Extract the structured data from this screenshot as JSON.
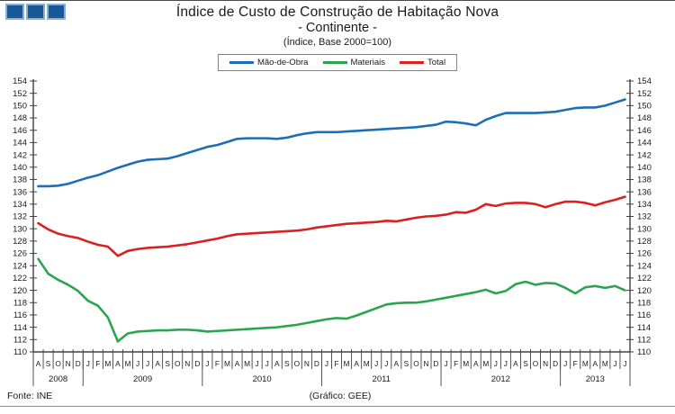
{
  "header": {
    "title": "Índice de Custo de Construção de Habitação Nova",
    "subtitle": "- Continente -",
    "caption": "(Índice, Base 2000=100)"
  },
  "legend": [
    {
      "label": "Mão-de-Obra",
      "color": "#1C6FB7"
    },
    {
      "label": "Materiais",
      "color": "#2BA44E"
    },
    {
      "label": "Total",
      "color": "#D92121"
    }
  ],
  "footer": {
    "source": "Fonte: INE",
    "credit": "(Gráfico: GEE)"
  },
  "colors": {
    "axis": "#404040",
    "text": "#1a1a1a",
    "logo_square_fill": "#1A5796",
    "logo_square_border": "#8AAFD0"
  },
  "chart_data": {
    "type": "line",
    "title": "Índice de Custo de Construção de Habitação Nova - Continente - (Índice, Base 2000=100)",
    "ylim": [
      110,
      154
    ],
    "ytick_step": 2,
    "grid": false,
    "legend_position": "top-center",
    "x_months": [
      "A",
      "S",
      "O",
      "N",
      "D",
      "J",
      "F",
      "M",
      "A",
      "M",
      "J",
      "J",
      "A",
      "S",
      "O",
      "N",
      "D",
      "J",
      "F",
      "M",
      "A",
      "M",
      "J",
      "J",
      "A",
      "S",
      "O",
      "N",
      "D",
      "J",
      "F",
      "M",
      "A",
      "M",
      "J",
      "J",
      "A",
      "S",
      "O",
      "N",
      "D",
      "J",
      "F",
      "M",
      "A",
      "M",
      "J",
      "J",
      "A",
      "S",
      "O",
      "N",
      "D",
      "J",
      "F",
      "M",
      "A",
      "M",
      "J",
      "J"
    ],
    "x_years": [
      {
        "label": "2008",
        "count": 5
      },
      {
        "label": "2009",
        "count": 12
      },
      {
        "label": "2010",
        "count": 12
      },
      {
        "label": "2011",
        "count": 12
      },
      {
        "label": "2012",
        "count": 12
      },
      {
        "label": "2013",
        "count": 7
      }
    ],
    "series": [
      {
        "name": "Mão-de-Obra",
        "color": "#1C6FB7",
        "values": [
          136.9,
          136.9,
          137.0,
          137.3,
          137.8,
          138.3,
          138.7,
          139.3,
          139.9,
          140.4,
          140.9,
          141.2,
          141.3,
          141.4,
          141.8,
          142.3,
          142.8,
          143.3,
          143.6,
          144.1,
          144.6,
          144.7,
          144.7,
          144.7,
          144.6,
          144.8,
          145.2,
          145.5,
          145.7,
          145.7,
          145.7,
          145.8,
          145.9,
          146.0,
          146.1,
          146.2,
          146.3,
          146.4,
          146.5,
          146.7,
          146.9,
          147.4,
          147.3,
          147.1,
          146.8,
          147.7,
          148.3,
          148.8,
          148.8,
          148.8,
          148.8,
          148.9,
          149.0,
          149.3,
          149.6,
          149.7,
          149.7,
          150.0,
          150.5,
          151.0
        ]
      },
      {
        "name": "Materiais",
        "color": "#2BA44E",
        "values": [
          125.1,
          122.7,
          121.7,
          120.9,
          119.9,
          118.3,
          117.5,
          115.6,
          111.7,
          113.0,
          113.3,
          113.4,
          113.5,
          113.5,
          113.6,
          113.6,
          113.5,
          113.3,
          113.4,
          113.5,
          113.6,
          113.7,
          113.8,
          113.9,
          114.0,
          114.2,
          114.4,
          114.7,
          115.0,
          115.3,
          115.5,
          115.4,
          115.9,
          116.5,
          117.1,
          117.7,
          117.9,
          118.0,
          118.0,
          118.2,
          118.5,
          118.8,
          119.1,
          119.4,
          119.7,
          120.1,
          119.5,
          119.9,
          121.0,
          121.4,
          120.9,
          121.2,
          121.1,
          120.4,
          119.5,
          120.5,
          120.7,
          120.4,
          120.7,
          120.0
        ]
      },
      {
        "name": "Total",
        "color": "#D92121",
        "values": [
          130.9,
          129.9,
          129.2,
          128.8,
          128.5,
          127.9,
          127.4,
          127.1,
          125.6,
          126.4,
          126.7,
          126.9,
          127.0,
          127.1,
          127.3,
          127.5,
          127.8,
          128.1,
          128.4,
          128.8,
          129.1,
          129.2,
          129.3,
          129.4,
          129.5,
          129.6,
          129.7,
          129.9,
          130.2,
          130.4,
          130.6,
          130.8,
          130.9,
          131.0,
          131.1,
          131.3,
          131.2,
          131.5,
          131.8,
          132.0,
          132.1,
          132.3,
          132.7,
          132.6,
          133.1,
          134.0,
          133.7,
          134.1,
          134.2,
          134.2,
          134.0,
          133.5,
          134.0,
          134.4,
          134.4,
          134.2,
          133.8,
          134.3,
          134.7,
          135.2
        ]
      }
    ]
  }
}
